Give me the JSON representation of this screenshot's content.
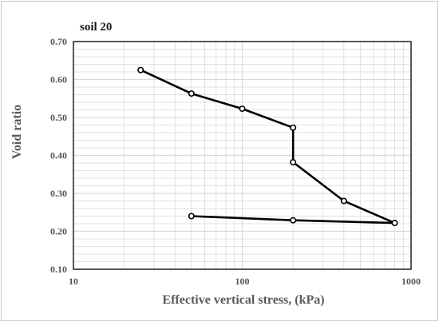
{
  "chart_data": {
    "type": "line",
    "title": "soil 20",
    "xlabel": "Effective vertical stress, (kPa)",
    "ylabel": "Void ratio",
    "x_scale": "log",
    "xlim": [
      10,
      1000
    ],
    "ylim": [
      0.1,
      0.7
    ],
    "x_ticks": [
      "10",
      "100",
      "1000"
    ],
    "y_ticks": [
      "0.10",
      "0.20",
      "0.30",
      "0.40",
      "0.50",
      "0.60",
      "0.70"
    ],
    "grid": true,
    "legend": "none",
    "series": [
      {
        "x": [
          25,
          50,
          100,
          200,
          200,
          400,
          800,
          200,
          50
        ],
        "y": [
          0.625,
          0.563,
          0.523,
          0.473,
          0.382,
          0.28,
          0.222,
          0.229,
          0.24
        ]
      }
    ],
    "colors": {
      "line": "#000000",
      "marker_fill": "#ffffff",
      "grid": "#d9d9d9",
      "axis": "#000000"
    }
  }
}
